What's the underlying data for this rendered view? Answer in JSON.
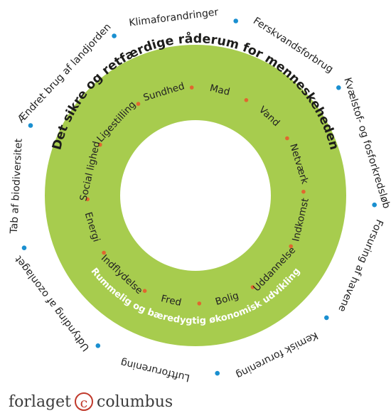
{
  "diagram": {
    "colors": {
      "band": "#a7cc4e",
      "outer_dot": "#1a8fd0",
      "inner_dot": "#e0672f",
      "band_top_text": "#1d1d1b",
      "band_bottom_text": "#ffffff"
    },
    "band_top_title": "Det sikre og retfærdige råderum for menneskeheden",
    "band_bottom_title": "Rummelig og bæredygtig økonomisk udvikling",
    "outer_labels": [
      "Klimaforandringer",
      "Ferskvandsforbrug",
      "Kvælstof- og fosforkredsløb",
      "Forsuring af havene",
      "Kemisk forurening",
      "Luftforurening",
      "Udtynding af ozonlaget",
      "Tab af biodiversitet",
      "Ændret brug af landjorden"
    ],
    "inner_labels": [
      "Mad",
      "Vand",
      "Netværk",
      "Indkomst",
      "Uddannelse",
      "Bolig",
      "Fred",
      "Indflydelse",
      "Energi",
      "Social lighed",
      "Ligestilling",
      "Sundhed"
    ]
  },
  "publisher": {
    "name_left": "forlaget",
    "mark": "c",
    "name_right": "columbus"
  }
}
